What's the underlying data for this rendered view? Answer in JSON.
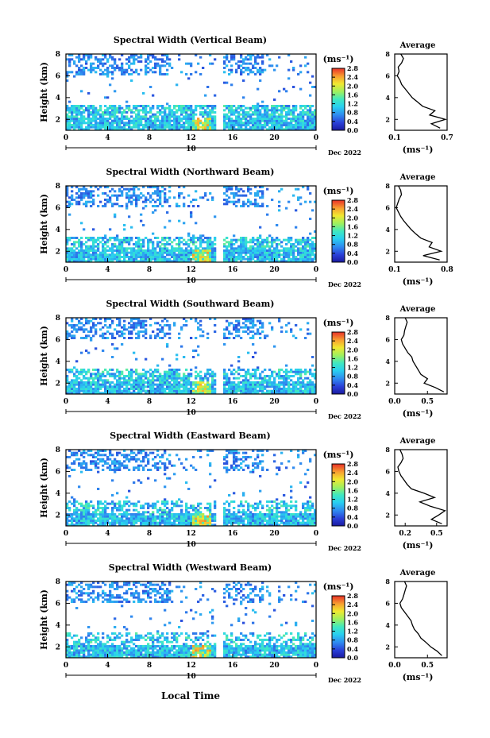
{
  "figure": {
    "xlabel": "Local Time",
    "date_label": "Dec 2022",
    "day_label": "10"
  },
  "chart_data": [
    {
      "type": "heatmap",
      "title": "Spectral Width (Vertical Beam)",
      "ylabel": "Height (km)",
      "xlabel": "Local Time",
      "x_ticks": [
        "0",
        "4",
        "8",
        "12",
        "16",
        "20",
        "0"
      ],
      "y_ticks": [
        "2",
        "4",
        "6",
        "8"
      ],
      "xlim": [
        0,
        24
      ],
      "ylim": [
        1,
        8
      ],
      "colorbar": {
        "label": "(ms⁻¹)",
        "ticks": [
          "0.0",
          "0.4",
          "0.8",
          "1.2",
          "1.6",
          "2.0",
          "2.4",
          "2.8"
        ],
        "range": [
          0,
          2.8
        ]
      },
      "profile": {
        "title": "Average",
        "xlabel": "(ms⁻¹)",
        "x_ticks": [
          "0.1",
          "0.7"
        ],
        "xlim": [
          0.1,
          0.7
        ],
        "ylim": [
          1,
          8
        ],
        "heights": [
          1.2,
          1.6,
          2.0,
          2.4,
          2.8,
          3.2,
          3.6,
          4.0,
          4.4,
          4.8,
          5.2,
          5.6,
          6.0,
          6.4,
          6.8,
          7.2,
          7.6,
          8.0
        ],
        "values": [
          0.62,
          0.52,
          0.68,
          0.5,
          0.56,
          0.42,
          0.36,
          0.3,
          0.26,
          0.22,
          0.18,
          0.16,
          0.13,
          0.15,
          0.14,
          0.18,
          0.2,
          0.17
        ]
      }
    },
    {
      "type": "heatmap",
      "title": "Spectral Width (Northward Beam)",
      "ylabel": "Height (km)",
      "xlabel": "Local Time",
      "x_ticks": [
        "0",
        "4",
        "8",
        "12",
        "16",
        "20",
        "0"
      ],
      "y_ticks": [
        "2",
        "4",
        "6",
        "8"
      ],
      "xlim": [
        0,
        24
      ],
      "ylim": [
        1,
        8
      ],
      "colorbar": {
        "label": "(ms⁻¹)",
        "ticks": [
          "0.0",
          "0.4",
          "0.8",
          "1.2",
          "1.6",
          "2.0",
          "2.4",
          "2.8"
        ],
        "range": [
          0,
          2.8
        ]
      },
      "profile": {
        "title": "Average",
        "xlabel": "(ms⁻¹)",
        "x_ticks": [
          "0.1",
          "0.8"
        ],
        "xlim": [
          0.1,
          0.8
        ],
        "ylim": [
          1,
          8
        ],
        "heights": [
          1.2,
          1.6,
          2.0,
          2.4,
          2.8,
          3.2,
          3.6,
          4.0,
          4.4,
          4.8,
          5.2,
          5.6,
          6.0,
          6.4,
          6.8,
          7.2,
          7.6,
          8.0
        ],
        "values": [
          0.7,
          0.48,
          0.72,
          0.56,
          0.6,
          0.45,
          0.38,
          0.32,
          0.27,
          0.22,
          0.18,
          0.15,
          0.12,
          0.14,
          0.16,
          0.19,
          0.18,
          0.15
        ]
      }
    },
    {
      "type": "heatmap",
      "title": "Spectral Width (Southward Beam)",
      "ylabel": "Height (km)",
      "xlabel": "Local Time",
      "x_ticks": [
        "0",
        "4",
        "8",
        "12",
        "16",
        "20",
        "0"
      ],
      "y_ticks": [
        "2",
        "4",
        "6",
        "8"
      ],
      "xlim": [
        0,
        24
      ],
      "ylim": [
        1,
        8
      ],
      "colorbar": {
        "label": "(ms⁻¹)",
        "ticks": [
          "0.0",
          "0.4",
          "0.8",
          "1.2",
          "1.6",
          "2.0",
          "2.4",
          "2.8"
        ],
        "range": [
          0,
          2.8
        ]
      },
      "profile": {
        "title": "Average",
        "xlabel": "(ms⁻¹)",
        "x_ticks": [
          "0.0",
          "0.5"
        ],
        "xlim": [
          0.0,
          0.8
        ],
        "ylim": [
          1,
          8
        ],
        "heights": [
          1.2,
          1.6,
          2.0,
          2.4,
          2.8,
          3.2,
          3.6,
          4.0,
          4.4,
          4.8,
          5.2,
          5.6,
          6.0,
          6.4,
          6.8,
          7.2,
          7.6,
          8.0
        ],
        "values": [
          0.75,
          0.62,
          0.45,
          0.5,
          0.4,
          0.36,
          0.32,
          0.28,
          0.26,
          0.2,
          0.16,
          0.12,
          0.1,
          0.14,
          0.15,
          0.17,
          0.19,
          0.16
        ]
      }
    },
    {
      "type": "heatmap",
      "title": "Spectral Width (Eastward Beam)",
      "ylabel": "Height (km)",
      "xlabel": "Local Time",
      "x_ticks": [
        "0",
        "4",
        "8",
        "12",
        "16",
        "20",
        "0"
      ],
      "y_ticks": [
        "2",
        "4",
        "6",
        "8"
      ],
      "xlim": [
        0,
        24
      ],
      "ylim": [
        1,
        8
      ],
      "colorbar": {
        "label": "(ms⁻¹)",
        "ticks": [
          "0.0",
          "0.4",
          "0.8",
          "1.2",
          "1.6",
          "2.0",
          "2.4",
          "2.8"
        ],
        "range": [
          0,
          2.8
        ]
      },
      "profile": {
        "title": "Average",
        "xlabel": "(ms⁻¹)",
        "x_ticks": [
          "0.2",
          "0.5"
        ],
        "xlim": [
          0.1,
          0.6
        ],
        "ylim": [
          1,
          8
        ],
        "heights": [
          1.2,
          1.6,
          2.0,
          2.4,
          2.8,
          3.2,
          3.6,
          4.0,
          4.4,
          4.8,
          5.2,
          5.6,
          6.0,
          6.4,
          6.8,
          7.2,
          7.6,
          8.0
        ],
        "values": [
          0.55,
          0.45,
          0.52,
          0.58,
          0.44,
          0.34,
          0.48,
          0.38,
          0.26,
          0.22,
          0.19,
          0.16,
          0.14,
          0.13,
          0.16,
          0.18,
          0.17,
          0.15
        ]
      }
    },
    {
      "type": "heatmap",
      "title": "Spectral Width (Westward Beam)",
      "ylabel": "Height (km)",
      "xlabel": "Local Time",
      "x_ticks": [
        "0",
        "4",
        "8",
        "12",
        "16",
        "20",
        "0"
      ],
      "y_ticks": [
        "2",
        "4",
        "6",
        "8"
      ],
      "xlim": [
        0,
        24
      ],
      "ylim": [
        1,
        8
      ],
      "colorbar": {
        "label": "(ms⁻¹)",
        "ticks": [
          "0.0",
          "0.4",
          "0.8",
          "1.2",
          "1.6",
          "2.0",
          "2.4",
          "2.8"
        ],
        "range": [
          0,
          2.8
        ]
      },
      "profile": {
        "title": "Average",
        "xlabel": "(ms⁻¹)",
        "x_ticks": [
          "0.0",
          "0.5"
        ],
        "xlim": [
          0.0,
          0.8
        ],
        "ylim": [
          1,
          8
        ],
        "heights": [
          1.2,
          1.6,
          2.0,
          2.4,
          2.8,
          3.2,
          3.6,
          4.0,
          4.4,
          4.8,
          5.2,
          5.6,
          6.0,
          6.4,
          6.8,
          7.2,
          7.6,
          8.0
        ],
        "values": [
          0.72,
          0.65,
          0.55,
          0.48,
          0.4,
          0.36,
          0.3,
          0.27,
          0.25,
          0.2,
          0.15,
          0.1,
          0.08,
          0.12,
          0.14,
          0.16,
          0.18,
          0.15
        ]
      }
    }
  ]
}
